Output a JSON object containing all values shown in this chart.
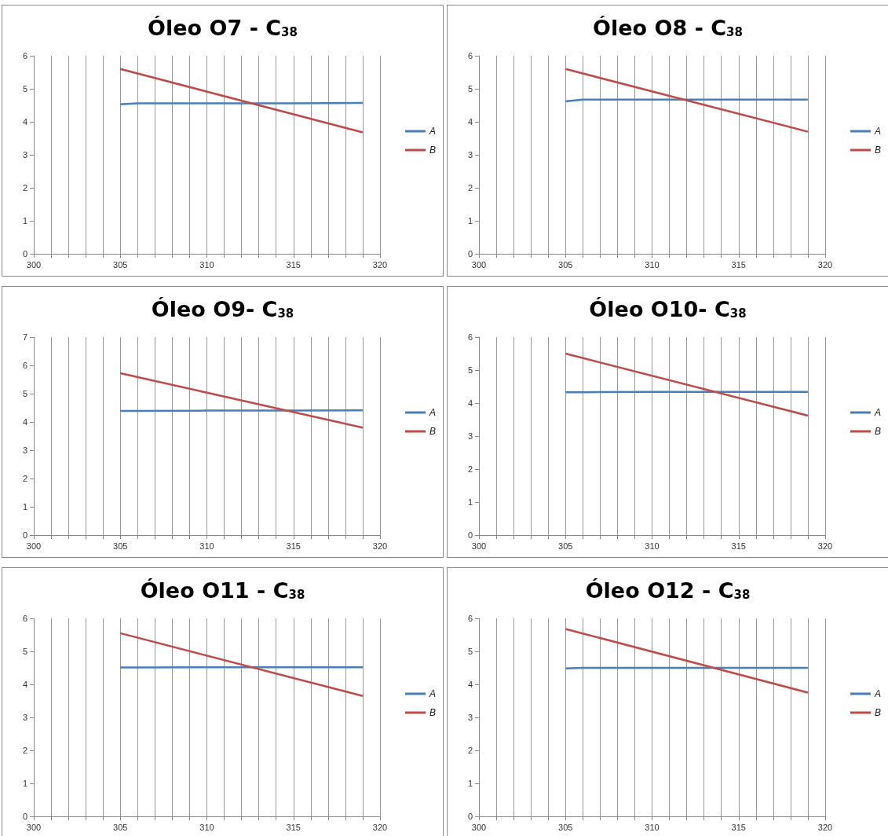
{
  "chart_data": [
    {
      "type": "line",
      "title": "Óleo O7 - C$_{38}$",
      "xlim": [
        300,
        320
      ],
      "ylim": [
        0,
        6
      ],
      "xticks": [
        300,
        {
          "value": 301,
          "label": null
        },
        {
          "value": 302,
          "label": null
        },
        {
          "value": 303,
          "label": null
        },
        {
          "value": 304,
          "label": null
        },
        305,
        {
          "value": 306,
          "label": null
        },
        {
          "value": 307,
          "label": null
        },
        {
          "value": 308,
          "label": null
        },
        {
          "value": 309,
          "label": null
        },
        310,
        {
          "value": 311,
          "label": null
        },
        {
          "value": 312,
          "label": null
        },
        {
          "value": 313,
          "label": null
        },
        {
          "value": 314,
          "label": null
        },
        315,
        {
          "value": 316,
          "label": null
        },
        {
          "value": 317,
          "label": null
        },
        {
          "value": 318,
          "label": null
        },
        {
          "value": 319,
          "label": null
        },
        320
      ],
      "yticks": [
        0,
        1,
        2,
        3,
        4,
        5,
        6
      ],
      "grid": "x",
      "legend": "right",
      "marker": "none",
      "line_style": "solid",
      "series": [
        {
          "name": "A",
          "color": "#4a7ebb",
          "x": [
            305,
            306,
            310,
            315,
            319
          ],
          "values": [
            4.53,
            4.56,
            4.56,
            4.56,
            4.57
          ]
        },
        {
          "name": "B",
          "color": "#be4b48",
          "x": [
            305,
            319
          ],
          "values": [
            5.6,
            3.68
          ]
        }
      ]
    },
    {
      "type": "line",
      "title": "Óleo O8 - C$_{38}$",
      "xlim": [
        300,
        320
      ],
      "ylim": [
        0,
        6
      ],
      "xticks": [
        300,
        {
          "value": 301,
          "label": null
        },
        {
          "value": 302,
          "label": null
        },
        {
          "value": 303,
          "label": null
        },
        {
          "value": 304,
          "label": null
        },
        305,
        {
          "value": 306,
          "label": null
        },
        {
          "value": 307,
          "label": null
        },
        {
          "value": 308,
          "label": null
        },
        {
          "value": 309,
          "label": null
        },
        310,
        {
          "value": 311,
          "label": null
        },
        {
          "value": 312,
          "label": null
        },
        {
          "value": 313,
          "label": null
        },
        {
          "value": 314,
          "label": null
        },
        315,
        {
          "value": 316,
          "label": null
        },
        {
          "value": 317,
          "label": null
        },
        {
          "value": 318,
          "label": null
        },
        {
          "value": 319,
          "label": null
        },
        320
      ],
      "yticks": [
        0,
        1,
        2,
        3,
        4,
        5,
        6
      ],
      "grid": "x",
      "legend": "right",
      "marker": "none",
      "line_style": "solid",
      "series": [
        {
          "name": "A",
          "color": "#4a7ebb",
          "x": [
            305,
            306,
            310,
            315,
            319
          ],
          "values": [
            4.62,
            4.67,
            4.67,
            4.67,
            4.67
          ]
        },
        {
          "name": "B",
          "color": "#be4b48",
          "x": [
            305,
            319
          ],
          "values": [
            5.6,
            3.7
          ]
        }
      ]
    },
    {
      "type": "line",
      "title": "Óleo O9- C$_{38}$",
      "xlim": [
        300,
        320
      ],
      "ylim": [
        0,
        7
      ],
      "xticks": [
        300,
        {
          "value": 301,
          "label": null
        },
        {
          "value": 302,
          "label": null
        },
        {
          "value": 303,
          "label": null
        },
        {
          "value": 304,
          "label": null
        },
        305,
        {
          "value": 306,
          "label": null
        },
        {
          "value": 307,
          "label": null
        },
        {
          "value": 308,
          "label": null
        },
        {
          "value": 309,
          "label": null
        },
        310,
        {
          "value": 311,
          "label": null
        },
        {
          "value": 312,
          "label": null
        },
        {
          "value": 313,
          "label": null
        },
        {
          "value": 314,
          "label": null
        },
        315,
        {
          "value": 316,
          "label": null
        },
        {
          "value": 317,
          "label": null
        },
        {
          "value": 318,
          "label": null
        },
        {
          "value": 319,
          "label": null
        },
        320
      ],
      "yticks": [
        0,
        1,
        2,
        3,
        4,
        5,
        6,
        7
      ],
      "grid": "x",
      "legend": "right",
      "marker": "none",
      "line_style": "solid",
      "series": [
        {
          "name": "A",
          "color": "#4a7ebb",
          "x": [
            305,
            306,
            310,
            315,
            319
          ],
          "values": [
            4.39,
            4.39,
            4.4,
            4.4,
            4.41
          ]
        },
        {
          "name": "B",
          "color": "#be4b48",
          "x": [
            305,
            319
          ],
          "values": [
            5.72,
            3.8
          ]
        }
      ]
    },
    {
      "type": "line",
      "title": "Óleo O10- C$_{38}$",
      "xlim": [
        300,
        320
      ],
      "ylim": [
        0,
        6
      ],
      "xticks": [
        300,
        {
          "value": 301,
          "label": null
        },
        {
          "value": 302,
          "label": null
        },
        {
          "value": 303,
          "label": null
        },
        {
          "value": 304,
          "label": null
        },
        305,
        {
          "value": 306,
          "label": null
        },
        {
          "value": 307,
          "label": null
        },
        {
          "value": 308,
          "label": null
        },
        {
          "value": 309,
          "label": null
        },
        310,
        {
          "value": 311,
          "label": null
        },
        {
          "value": 312,
          "label": null
        },
        {
          "value": 313,
          "label": null
        },
        {
          "value": 314,
          "label": null
        },
        315,
        {
          "value": 316,
          "label": null
        },
        {
          "value": 317,
          "label": null
        },
        {
          "value": 318,
          "label": null
        },
        {
          "value": 319,
          "label": null
        },
        320
      ],
      "yticks": [
        0,
        1,
        2,
        3,
        4,
        5,
        6
      ],
      "grid": "x",
      "legend": "right",
      "marker": "none",
      "line_style": "solid",
      "series": [
        {
          "name": "A",
          "color": "#4a7ebb",
          "x": [
            305,
            306,
            310,
            315,
            319
          ],
          "values": [
            4.33,
            4.33,
            4.34,
            4.34,
            4.34
          ]
        },
        {
          "name": "B",
          "color": "#be4b48",
          "x": [
            305,
            319
          ],
          "values": [
            5.5,
            3.62
          ]
        }
      ]
    },
    {
      "type": "line",
      "title": "Óleo O11 - C$_{38}$",
      "xlim": [
        300,
        320
      ],
      "ylim": [
        0,
        6
      ],
      "xticks": [
        300,
        {
          "value": 301,
          "label": null
        },
        {
          "value": 302,
          "label": null
        },
        {
          "value": 303,
          "label": null
        },
        {
          "value": 304,
          "label": null
        },
        305,
        {
          "value": 306,
          "label": null
        },
        {
          "value": 307,
          "label": null
        },
        {
          "value": 308,
          "label": null
        },
        {
          "value": 309,
          "label": null
        },
        310,
        {
          "value": 311,
          "label": null
        },
        {
          "value": 312,
          "label": null
        },
        {
          "value": 313,
          "label": null
        },
        {
          "value": 314,
          "label": null
        },
        315,
        {
          "value": 316,
          "label": null
        },
        {
          "value": 317,
          "label": null
        },
        {
          "value": 318,
          "label": null
        },
        {
          "value": 319,
          "label": null
        },
        320
      ],
      "yticks": [
        0,
        1,
        2,
        3,
        4,
        5,
        6
      ],
      "grid": "x",
      "legend": "right",
      "marker": "none",
      "line_style": "solid",
      "series": [
        {
          "name": "A",
          "color": "#4a7ebb",
          "x": [
            305,
            306,
            310,
            315,
            319
          ],
          "values": [
            4.51,
            4.51,
            4.52,
            4.52,
            4.52
          ]
        },
        {
          "name": "B",
          "color": "#be4b48",
          "x": [
            305,
            319
          ],
          "values": [
            5.55,
            3.65
          ]
        }
      ]
    },
    {
      "type": "line",
      "title": "Óleo O12 - C$_{38}$",
      "xlim": [
        300,
        320
      ],
      "ylim": [
        0,
        6
      ],
      "xticks": [
        300,
        {
          "value": 301,
          "label": null
        },
        {
          "value": 302,
          "label": null
        },
        {
          "value": 303,
          "label": null
        },
        {
          "value": 304,
          "label": null
        },
        305,
        {
          "value": 306,
          "label": null
        },
        {
          "value": 307,
          "label": null
        },
        {
          "value": 308,
          "label": null
        },
        {
          "value": 309,
          "label": null
        },
        310,
        {
          "value": 311,
          "label": null
        },
        {
          "value": 312,
          "label": null
        },
        {
          "value": 313,
          "label": null
        },
        {
          "value": 314,
          "label": null
        },
        315,
        {
          "value": 316,
          "label": null
        },
        {
          "value": 317,
          "label": null
        },
        {
          "value": 318,
          "label": null
        },
        {
          "value": 319,
          "label": null
        },
        320
      ],
      "yticks": [
        0,
        1,
        2,
        3,
        4,
        5,
        6
      ],
      "grid": "x",
      "legend": "right",
      "marker": "none",
      "line_style": "solid",
      "series": [
        {
          "name": "A",
          "color": "#4a7ebb",
          "x": [
            305,
            306,
            310,
            315,
            319
          ],
          "values": [
            4.48,
            4.5,
            4.5,
            4.5,
            4.5
          ]
        },
        {
          "name": "B",
          "color": "#be4b48",
          "x": [
            305,
            319
          ],
          "values": [
            5.68,
            3.75
          ]
        }
      ]
    }
  ]
}
